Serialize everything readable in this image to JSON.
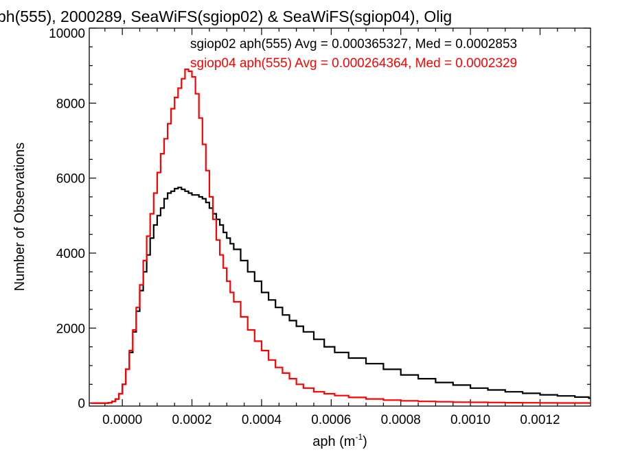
{
  "chart_data": {
    "type": "line",
    "title": "ph(555), 2000289, SeaWiFS(sgiop02) & SeaWiFS(sgiop04), Olig",
    "xlabel": "aph (m",
    "xlabel_sup": "-1",
    "xlabel_tail": ")",
    "ylabel": "Number of Observations",
    "xlim": [
      -9.5e-05,
      0.001345
    ],
    "ylim": [
      -80,
      10000
    ],
    "xticks": [
      0.0,
      0.0002,
      0.0004,
      0.0006,
      0.0008,
      0.001,
      0.0012
    ],
    "xtick_labels": [
      "0.0000",
      "0.0002",
      "0.0004",
      "0.0006",
      "0.0008",
      "0.0010",
      "0.0012"
    ],
    "yticks": [
      0,
      2000,
      4000,
      6000,
      8000,
      10000
    ],
    "ytick_labels": [
      "0",
      "2000",
      "4000",
      "6000",
      "8000",
      "10000"
    ],
    "grid": false,
    "legend_position": "top-right",
    "series": [
      {
        "name": "sgiop02 aph(555) Avg = 0.000365327, Med = 0.0002853",
        "color": "#000000",
        "x": [
          -9e-05,
          -6e-05,
          -4e-05,
          -3e-05,
          -2e-05,
          -1e-05,
          0.0,
          1e-05,
          2e-05,
          3e-05,
          4e-05,
          5e-05,
          6e-05,
          7e-05,
          8e-05,
          9e-05,
          0.0001,
          0.00011,
          0.00012,
          0.00013,
          0.00014,
          0.00015,
          0.00016,
          0.00017,
          0.00018,
          0.00019,
          0.0002,
          0.00021,
          0.00022,
          0.00023,
          0.00024,
          0.00025,
          0.00026,
          0.00027,
          0.00028,
          0.00029,
          0.0003,
          0.00031,
          0.00032,
          0.00034,
          0.00036,
          0.00038,
          0.0004,
          0.00042,
          0.00044,
          0.00046,
          0.00048,
          0.0005,
          0.00052,
          0.00055,
          0.00058,
          0.00061,
          0.00065,
          0.0007,
          0.00075,
          0.0008,
          0.00085,
          0.0009,
          0.00095,
          0.001,
          0.00105,
          0.0011,
          0.00115,
          0.0012,
          0.00125,
          0.0013,
          0.00134
        ],
        "y": [
          0,
          0,
          10,
          40,
          110,
          250,
          500,
          900,
          1350,
          1900,
          2450,
          3000,
          3500,
          3950,
          4400,
          4750,
          5000,
          5200,
          5450,
          5600,
          5650,
          5720,
          5750,
          5700,
          5650,
          5600,
          5550,
          5550,
          5500,
          5450,
          5350,
          5200,
          5050,
          4900,
          4750,
          4550,
          4400,
          4250,
          4100,
          3800,
          3500,
          3250,
          2950,
          2750,
          2550,
          2350,
          2200,
          2050,
          1900,
          1700,
          1500,
          1350,
          1200,
          1050,
          900,
          750,
          650,
          550,
          480,
          400,
          350,
          300,
          260,
          220,
          190,
          160,
          130
        ]
      },
      {
        "name": "sgiop04 aph(555) Avg = 0.000264364, Med = 0.0002329",
        "color": "#ff0000",
        "x": [
          -9e-05,
          -6e-05,
          -4e-05,
          -3e-05,
          -2e-05,
          -1e-05,
          0.0,
          1e-05,
          2e-05,
          3e-05,
          4e-05,
          5e-05,
          6e-05,
          7e-05,
          8e-05,
          9e-05,
          0.0001,
          0.00011,
          0.00012,
          0.00013,
          0.00014,
          0.00015,
          0.00016,
          0.00017,
          0.00018,
          0.00019,
          0.0002,
          0.00021,
          0.00022,
          0.00023,
          0.00024,
          0.00025,
          0.00026,
          0.00027,
          0.00028,
          0.00029,
          0.0003,
          0.00031,
          0.00032,
          0.00034,
          0.00036,
          0.00038,
          0.0004,
          0.00042,
          0.00044,
          0.00046,
          0.00048,
          0.0005,
          0.00052,
          0.00055,
          0.00058,
          0.00061,
          0.00065,
          0.0007,
          0.00075,
          0.0008,
          0.00085,
          0.0009,
          0.00095,
          0.001,
          0.00105,
          0.0011,
          0.00115,
          0.0012,
          0.00125,
          0.0013,
          0.00134
        ],
        "y": [
          0,
          0,
          10,
          40,
          110,
          250,
          500,
          900,
          1400,
          1950,
          2550,
          3150,
          3800,
          4450,
          5050,
          5600,
          6150,
          6650,
          7050,
          7450,
          7850,
          8150,
          8400,
          8650,
          8900,
          8850,
          8700,
          8250,
          7600,
          6900,
          6200,
          5500,
          4900,
          4350,
          3950,
          3600,
          3250,
          2950,
          2700,
          2300,
          1950,
          1650,
          1400,
          1150,
          950,
          800,
          650,
          500,
          400,
          300,
          250,
          200,
          150,
          110,
          80,
          60,
          45,
          35,
          25,
          20,
          15,
          10,
          8,
          5,
          3,
          2,
          1
        ]
      }
    ]
  }
}
